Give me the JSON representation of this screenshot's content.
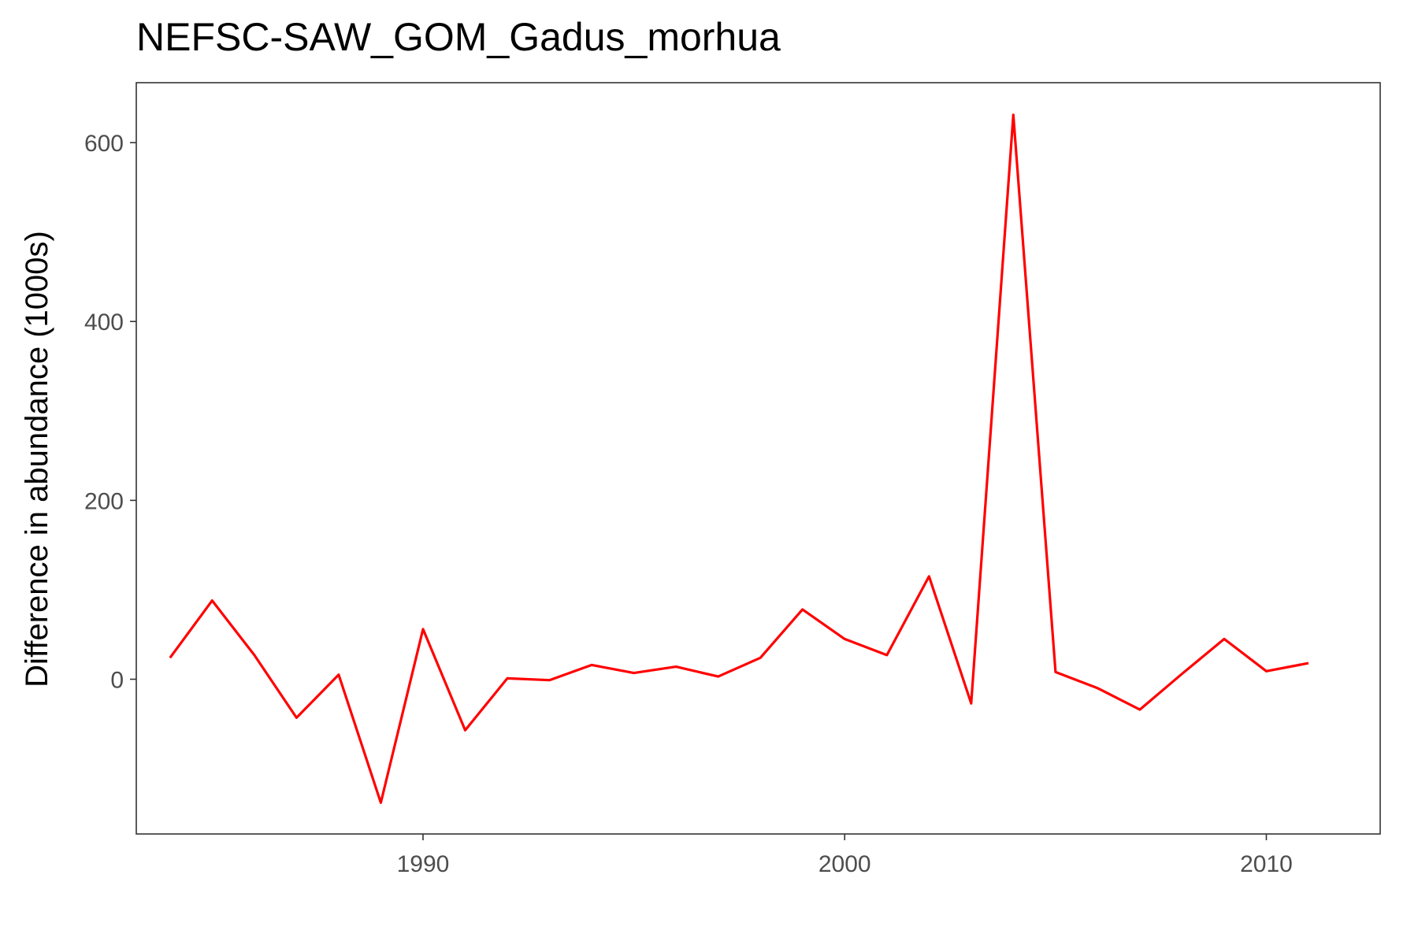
{
  "chart_data": {
    "type": "line",
    "title": "NEFSC-SAW_GOM_Gadus_morhua",
    "xlabel": "",
    "ylabel": "Difference in abundance (1000s)",
    "xlim": [
      1983.2,
      2012.7
    ],
    "ylim": [
      -173,
      667
    ],
    "x_ticks": [
      1990,
      2000,
      2010
    ],
    "y_ticks": [
      0,
      200,
      400,
      600
    ],
    "x_tick_labels": [
      "1990",
      "2000",
      "2010"
    ],
    "y_tick_labels": [
      "0",
      "200",
      "400",
      "600"
    ],
    "grid": false,
    "line_color": "#ff0000",
    "series": [
      {
        "x": [
          1984,
          1985,
          1986,
          1987,
          1988,
          1989,
          1990,
          1991,
          1992,
          1993,
          1994,
          1995,
          1996,
          1997,
          1998,
          1999,
          2000,
          2001,
          2002,
          2003,
          2004,
          2005,
          2006,
          2007,
          2008,
          2009,
          2010,
          2011
        ],
        "values": [
          24,
          88,
          27,
          -43,
          5,
          -138,
          56,
          -57,
          1,
          -1,
          16,
          7,
          14,
          3,
          24,
          78,
          45,
          27,
          115,
          -27,
          631,
          8,
          -10,
          -34,
          6,
          45,
          9,
          18
        ]
      }
    ]
  }
}
